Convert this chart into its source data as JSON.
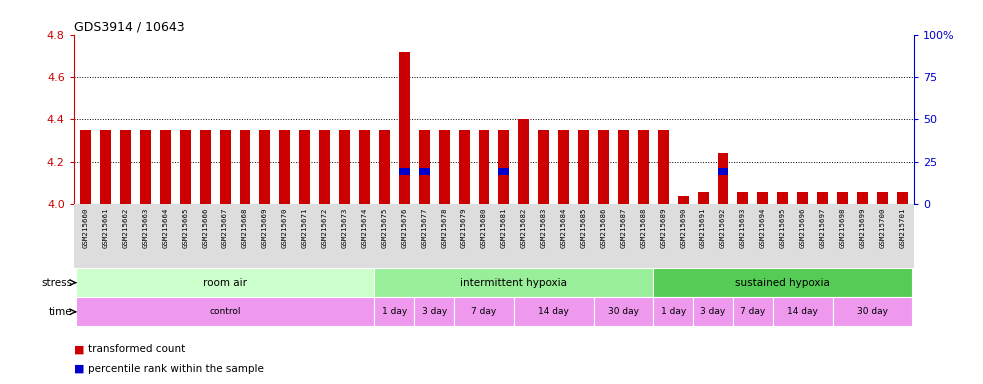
{
  "title": "GDS3914 / 10643",
  "samples": [
    "GSM215660",
    "GSM215661",
    "GSM215662",
    "GSM215663",
    "GSM215664",
    "GSM215665",
    "GSM215666",
    "GSM215667",
    "GSM215668",
    "GSM215669",
    "GSM215670",
    "GSM215671",
    "GSM215672",
    "GSM215673",
    "GSM215674",
    "GSM215675",
    "GSM215676",
    "GSM215677",
    "GSM215678",
    "GSM215679",
    "GSM215680",
    "GSM215681",
    "GSM215682",
    "GSM215683",
    "GSM215684",
    "GSM215685",
    "GSM215686",
    "GSM215687",
    "GSM215688",
    "GSM215689",
    "GSM215690",
    "GSM215691",
    "GSM215692",
    "GSM215693",
    "GSM215694",
    "GSM215695",
    "GSM215696",
    "GSM215697",
    "GSM215698",
    "GSM215699",
    "GSM215700",
    "GSM215701"
  ],
  "red_values": [
    4.35,
    4.35,
    4.35,
    4.35,
    4.35,
    4.35,
    4.35,
    4.35,
    4.35,
    4.35,
    4.35,
    4.35,
    4.35,
    4.35,
    4.35,
    4.35,
    4.72,
    4.35,
    4.35,
    4.35,
    4.35,
    4.35,
    4.4,
    4.35,
    4.35,
    4.35,
    4.35,
    4.35,
    4.35,
    4.35,
    4.04,
    4.06,
    4.24,
    4.06,
    4.06,
    4.06,
    4.06,
    4.06,
    4.06,
    4.06,
    4.06,
    4.06
  ],
  "blue_values": [
    null,
    null,
    null,
    null,
    null,
    null,
    null,
    null,
    null,
    null,
    null,
    null,
    null,
    null,
    null,
    null,
    4.155,
    4.155,
    null,
    null,
    null,
    4.155,
    null,
    null,
    null,
    null,
    null,
    null,
    null,
    null,
    null,
    null,
    4.155,
    null,
    null,
    null,
    null,
    null,
    null,
    null,
    null,
    null
  ],
  "ylim_left": [
    4.0,
    4.8
  ],
  "ylim_right": [
    0,
    100
  ],
  "yticks_left": [
    4.0,
    4.2,
    4.4,
    4.6,
    4.8
  ],
  "yticks_right": [
    0,
    25,
    50,
    75,
    100
  ],
  "ytick_labels_right": [
    "0",
    "25",
    "50",
    "75",
    "100%"
  ],
  "stress_groups": [
    {
      "label": "room air",
      "start": 0,
      "end": 15,
      "color": "#ccffcc"
    },
    {
      "label": "intermittent hypoxia",
      "start": 15,
      "end": 29,
      "color": "#99ee99"
    },
    {
      "label": "sustained hypoxia",
      "start": 29,
      "end": 42,
      "color": "#55cc55"
    }
  ],
  "time_groups": [
    {
      "label": "control",
      "start": 0,
      "end": 15,
      "color": "#ee99ee"
    },
    {
      "label": "1 day",
      "start": 15,
      "end": 17,
      "color": "#ee99ee"
    },
    {
      "label": "3 day",
      "start": 17,
      "end": 19,
      "color": "#ee99ee"
    },
    {
      "label": "7 day",
      "start": 19,
      "end": 22,
      "color": "#ee99ee"
    },
    {
      "label": "14 day",
      "start": 22,
      "end": 26,
      "color": "#ee99ee"
    },
    {
      "label": "30 day",
      "start": 26,
      "end": 29,
      "color": "#ee99ee"
    },
    {
      "label": "1 day",
      "start": 29,
      "end": 31,
      "color": "#ee99ee"
    },
    {
      "label": "3 day",
      "start": 31,
      "end": 33,
      "color": "#ee99ee"
    },
    {
      "label": "7 day",
      "start": 33,
      "end": 35,
      "color": "#ee99ee"
    },
    {
      "label": "14 day",
      "start": 35,
      "end": 38,
      "color": "#ee99ee"
    },
    {
      "label": "30 day",
      "start": 38,
      "end": 42,
      "color": "#ee99ee"
    }
  ],
  "bar_width": 0.55,
  "left_axis_color": "#cc0000",
  "right_axis_color": "#0000cc",
  "grid_color": "#000000",
  "bg_color": "#ffffff",
  "bar_color_red": "#cc0000",
  "bar_color_blue": "#0000cc",
  "blue_bar_height": 0.03,
  "xtick_fontsize": 5.5,
  "ytick_fontsize": 8
}
